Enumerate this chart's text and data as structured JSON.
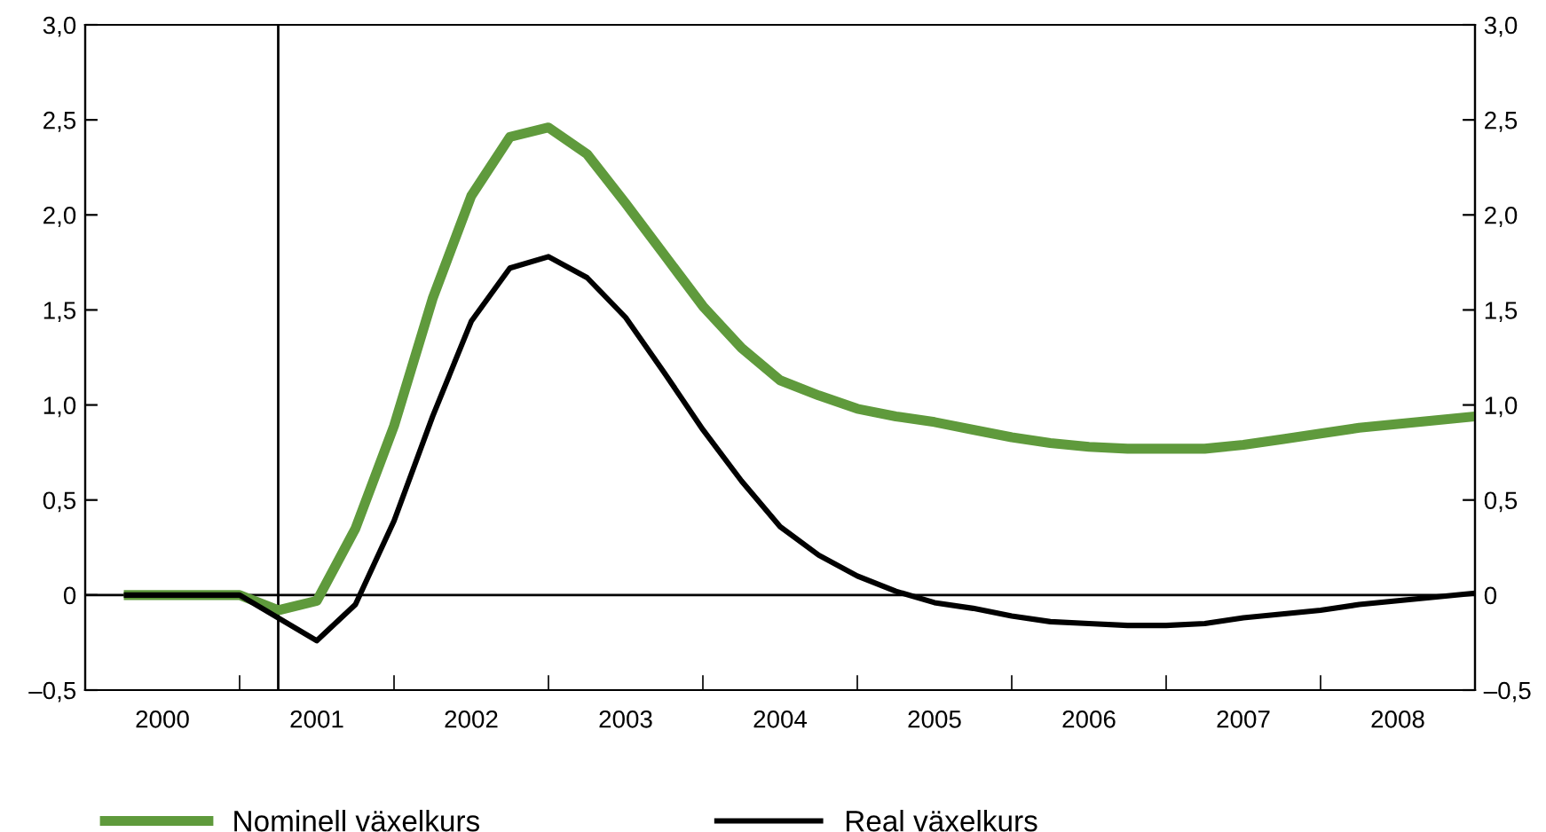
{
  "chart_data": {
    "type": "line",
    "x": [
      2000.25,
      2000.5,
      2000.75,
      2001,
      2001.25,
      2001.5,
      2001.75,
      2002,
      2002.25,
      2002.5,
      2002.75,
      2003,
      2003.25,
      2003.5,
      2003.75,
      2004,
      2004.25,
      2004.5,
      2004.75,
      2005,
      2005.25,
      2005.5,
      2005.75,
      2006,
      2006.25,
      2006.5,
      2006.75,
      2007,
      2007.25,
      2007.5,
      2007.75,
      2008,
      2008.25,
      2008.5,
      2008.75,
      2009
    ],
    "series": [
      {
        "name": "Nominell växelkurs",
        "color": "#5f9a3c",
        "values": [
          0,
          0,
          0,
          0,
          -0.08,
          -0.03,
          0.35,
          0.89,
          1.56,
          2.1,
          2.41,
          2.46,
          2.32,
          2.06,
          1.79,
          1.52,
          1.3,
          1.13,
          1.05,
          0.98,
          0.94,
          0.91,
          0.87,
          0.83,
          0.8,
          0.78,
          0.77,
          0.77,
          0.77,
          0.79,
          0.82,
          0.85,
          0.88,
          0.9,
          0.92,
          0.94
        ]
      },
      {
        "name": "Real växelkurs",
        "color": "#000000",
        "values": [
          0,
          0,
          0,
          0,
          -0.12,
          -0.24,
          -0.05,
          0.39,
          0.94,
          1.44,
          1.72,
          1.78,
          1.67,
          1.46,
          1.17,
          0.87,
          0.6,
          0.36,
          0.21,
          0.1,
          0.02,
          -0.04,
          -0.07,
          -0.11,
          -0.14,
          -0.15,
          -0.16,
          -0.16,
          -0.15,
          -0.12,
          -0.1,
          -0.08,
          -0.05,
          -0.03,
          -0.01,
          0.01
        ]
      }
    ],
    "xlim": [
      2000,
      2009
    ],
    "xticks": [
      {
        "value": 2000,
        "label": null
      },
      {
        "value": 2001,
        "label": null
      },
      {
        "value": 2002,
        "label": null
      },
      {
        "value": 2003,
        "label": null
      },
      {
        "value": 2004,
        "label": null
      },
      {
        "value": 2005,
        "label": null
      },
      {
        "value": 2006,
        "label": null
      },
      {
        "value": 2007,
        "label": null
      },
      {
        "value": 2008,
        "label": null
      },
      {
        "value": 2009,
        "label": null
      },
      {
        "value": 2000.5,
        "label": "2000"
      },
      {
        "value": 2001.5,
        "label": "2001"
      },
      {
        "value": 2002.5,
        "label": "2002"
      },
      {
        "value": 2003.5,
        "label": "2003"
      },
      {
        "value": 2004.5,
        "label": "2004"
      },
      {
        "value": 2005.5,
        "label": "2005"
      },
      {
        "value": 2006.5,
        "label": "2006"
      },
      {
        "value": 2007.5,
        "label": "2007"
      },
      {
        "value": 2008.5,
        "label": "2008"
      }
    ],
    "ylim": [
      -0.5,
      3.0
    ],
    "yticks": [
      {
        "value": -0.5,
        "label": "–0,5"
      },
      0,
      {
        "value": 0.5,
        "label": "0,5"
      },
      {
        "value": 1.0,
        "label": "1,0"
      },
      {
        "value": 1.5,
        "label": "1,5"
      },
      {
        "value": 2.0,
        "label": "2,0"
      },
      {
        "value": 2.5,
        "label": "2,5"
      },
      {
        "value": 3.0,
        "label": "3,0"
      }
    ],
    "y2lim": [
      -0.5,
      3.0
    ],
    "y2ticks": [
      {
        "value": -0.5,
        "label": "–0,5"
      },
      0,
      {
        "value": 0.5,
        "label": "0,5"
      },
      {
        "value": 1.0,
        "label": "1,0"
      },
      {
        "value": 1.5,
        "label": "1,5"
      },
      {
        "value": 2.0,
        "label": "2,0"
      },
      {
        "value": 2.5,
        "label": "2,5"
      },
      {
        "value": 3.0,
        "label": "3,0"
      }
    ],
    "ref_lines": [
      {
        "axis": "y",
        "value": 0,
        "color": "#000000"
      },
      {
        "axis": "x",
        "value": 2001.25,
        "color": "#000000"
      }
    ],
    "grid": false,
    "legend": "bottom",
    "marker": "none",
    "line_style": "solid"
  }
}
